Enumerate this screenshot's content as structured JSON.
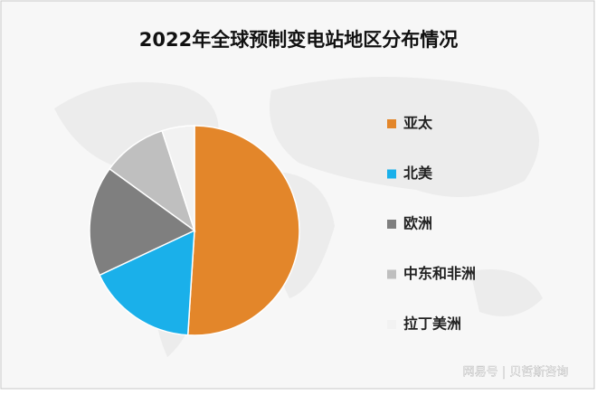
{
  "chart_data": {
    "type": "pie",
    "title": "2022年全球预制变电站地区分布情况",
    "categories": [
      "亚太",
      "北美",
      "欧洲",
      "中东和非洲",
      "拉丁美洲"
    ],
    "values": [
      51,
      17,
      17,
      10,
      5
    ],
    "colors": [
      "#e3862a",
      "#1ab0ea",
      "#7f7f7f",
      "#bfbfbf",
      "#f2f2f2"
    ]
  },
  "watermark": "网易号 | 贝哲斯咨询"
}
